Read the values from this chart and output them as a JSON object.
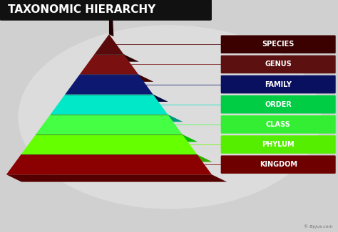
{
  "title": "TAXONOMIC HIERARCHY",
  "title_bg": "#111111",
  "title_color": "#ffffff",
  "background_color": "#d0d0d0",
  "watermark": "© Byjus.com",
  "levels": [
    {
      "label": "SPECIES",
      "face_color": "#5a0a0a",
      "bottom_color": "#2a0000"
    },
    {
      "label": "GENUS",
      "face_color": "#7a1010",
      "bottom_color": "#400000"
    },
    {
      "label": "FAMILY",
      "face_color": "#0d1870",
      "bottom_color": "#060a40"
    },
    {
      "label": "ORDER",
      "face_color": "#00e8c8",
      "bottom_color": "#009980"
    },
    {
      "label": "CLASS",
      "face_color": "#44ff44",
      "bottom_color": "#00bb00"
    },
    {
      "label": "PHYLUM",
      "face_color": "#66ff00",
      "bottom_color": "#33aa00"
    },
    {
      "label": "KINGDOM",
      "face_color": "#8b0000",
      "bottom_color": "#550000"
    }
  ],
  "box_colors": [
    "#3b0000",
    "#5c1010",
    "#0a1060",
    "#00cc44",
    "#33ee33",
    "#55ee00",
    "#6e0000"
  ],
  "apex_tip_color": "#2a0000",
  "apex_tip_shadow": "#150000"
}
